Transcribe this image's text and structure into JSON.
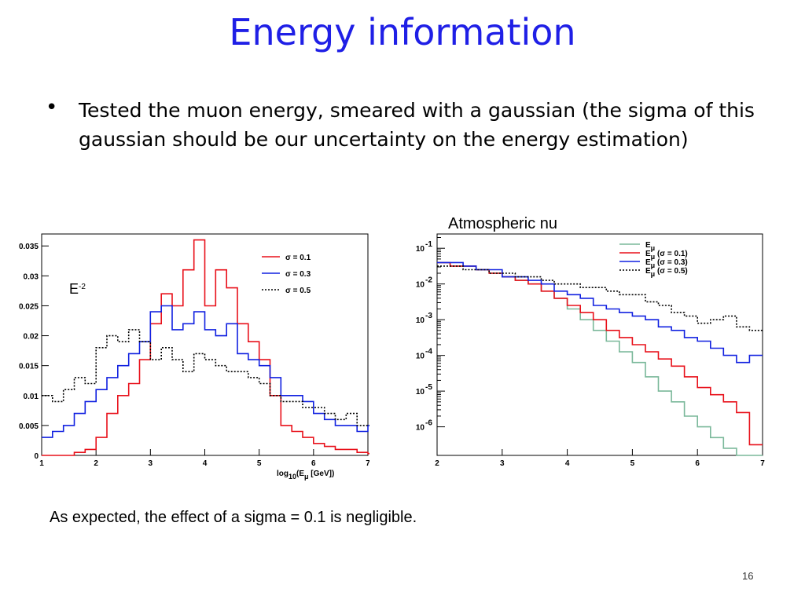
{
  "slide": {
    "title": "Energy information",
    "bullet": "Tested the muon energy, smeared with a gaussian (the sigma of this gaussian should be our uncertainty on the energy estimation)",
    "panel_label": "Atmospheric nu",
    "conclusion": "As expected, the effect of a sigma = 0.1 is negligible.",
    "page_number": "16"
  },
  "chart_data": [
    {
      "type": "line",
      "title": "",
      "annotation": {
        "base": "E",
        "sup": "-2"
      },
      "xlabel": "log10(Eμ [GeV])",
      "xlabel_parts": {
        "prefix": "log",
        "sub": "10",
        "mid": "(E",
        "sub2": "μ",
        "suffix": " [GeV])"
      },
      "ylabel": "",
      "xlim": [
        1,
        7
      ],
      "ylim": [
        0,
        0.037
      ],
      "x_ticks": [
        1,
        2,
        3,
        4,
        5,
        6,
        7
      ],
      "y_ticks": [
        0,
        0.005,
        0.01,
        0.015,
        0.02,
        0.025,
        0.03,
        0.035
      ],
      "y_tick_labels": [
        "0",
        "0.005",
        "0.01",
        "0.015",
        "0.02",
        "0.025",
        "0.03",
        "0.035"
      ],
      "legend_position": "top-right",
      "series": [
        {
          "name": "σ = 0.1",
          "color": "#e8101a",
          "style": "solid",
          "x": [
            1.0,
            1.2,
            1.4,
            1.6,
            1.8,
            2.0,
            2.2,
            2.4,
            2.6,
            2.8,
            3.0,
            3.2,
            3.4,
            3.6,
            3.8,
            4.0,
            4.2,
            4.4,
            4.6,
            4.8,
            5.0,
            5.2,
            5.4,
            5.6,
            5.8,
            6.0,
            6.2,
            6.4,
            6.6,
            6.8,
            7.0
          ],
          "y": [
            0.0,
            0.0,
            0.0,
            0.0005,
            0.001,
            0.003,
            0.007,
            0.01,
            0.012,
            0.016,
            0.022,
            0.027,
            0.025,
            0.031,
            0.036,
            0.025,
            0.031,
            0.028,
            0.022,
            0.019,
            0.016,
            0.01,
            0.005,
            0.004,
            0.003,
            0.002,
            0.0015,
            0.001,
            0.001,
            0.0005,
            0.0003
          ]
        },
        {
          "name": "σ = 0.3",
          "color": "#1020e0",
          "style": "solid",
          "x": [
            1.0,
            1.2,
            1.4,
            1.6,
            1.8,
            2.0,
            2.2,
            2.4,
            2.6,
            2.8,
            3.0,
            3.2,
            3.4,
            3.6,
            3.8,
            4.0,
            4.2,
            4.4,
            4.6,
            4.8,
            5.0,
            5.2,
            5.4,
            5.6,
            5.8,
            6.0,
            6.2,
            6.4,
            6.6,
            6.8,
            7.0
          ],
          "y": [
            0.003,
            0.004,
            0.005,
            0.007,
            0.009,
            0.011,
            0.013,
            0.015,
            0.017,
            0.019,
            0.024,
            0.025,
            0.021,
            0.022,
            0.024,
            0.021,
            0.02,
            0.022,
            0.017,
            0.016,
            0.015,
            0.013,
            0.01,
            0.01,
            0.009,
            0.007,
            0.006,
            0.005,
            0.005,
            0.004,
            0.005
          ]
        },
        {
          "name": "σ = 0.5",
          "color": "#000000",
          "style": "dotted",
          "x": [
            1.0,
            1.2,
            1.4,
            1.6,
            1.8,
            2.0,
            2.2,
            2.4,
            2.6,
            2.8,
            3.0,
            3.2,
            3.4,
            3.6,
            3.8,
            4.0,
            4.2,
            4.4,
            4.6,
            4.8,
            5.0,
            5.2,
            5.4,
            5.6,
            5.8,
            6.0,
            6.2,
            6.4,
            6.6,
            6.8,
            7.0
          ],
          "y": [
            0.01,
            0.009,
            0.011,
            0.013,
            0.012,
            0.018,
            0.02,
            0.019,
            0.021,
            0.019,
            0.016,
            0.018,
            0.016,
            0.014,
            0.017,
            0.016,
            0.015,
            0.014,
            0.014,
            0.013,
            0.012,
            0.01,
            0.009,
            0.009,
            0.008,
            0.008,
            0.007,
            0.006,
            0.007,
            0.005,
            0.005
          ]
        }
      ]
    },
    {
      "type": "line",
      "title": "",
      "xlabel": "",
      "ylabel": "",
      "xlim": [
        2,
        7
      ],
      "ylim_log10": [
        -6.8,
        -0.6
      ],
      "y_scale": "log",
      "x_ticks": [
        2,
        3,
        4,
        5,
        6,
        7
      ],
      "y_ticks_exp": [
        -1,
        -2,
        -3,
        -4,
        -5,
        -6
      ],
      "y_tick_base": "10",
      "legend_position": "top-right",
      "series": [
        {
          "name": "Eμ",
          "legend_parts": {
            "base": "E",
            "sub": "μ",
            "suffix": ""
          },
          "color": "#7ab89a",
          "style": "solid",
          "x": [
            2.0,
            2.2,
            2.4,
            2.6,
            2.8,
            3.0,
            3.2,
            3.4,
            3.6,
            3.8,
            4.0,
            4.2,
            4.4,
            4.6,
            4.8,
            5.0,
            5.2,
            5.4,
            5.6,
            5.8,
            6.0,
            6.2,
            6.4,
            6.6,
            6.8
          ],
          "y_log10": [
            -1.4,
            -1.5,
            -1.5,
            -1.6,
            -1.7,
            -1.8,
            -1.9,
            -2.0,
            -2.2,
            -2.4,
            -2.7,
            -3.0,
            -3.3,
            -3.6,
            -3.9,
            -4.2,
            -4.6,
            -5.0,
            -5.3,
            -5.7,
            -6.0,
            -6.3,
            -6.6,
            -6.8,
            -6.8
          ]
        },
        {
          "name": "Eμ (σ = 0.1)",
          "legend_parts": {
            "base": "E",
            "sub": "μ",
            "suffix": " (σ = 0.1)"
          },
          "color": "#e8101a",
          "style": "solid",
          "x": [
            2.0,
            2.2,
            2.4,
            2.6,
            2.8,
            3.0,
            3.2,
            3.4,
            3.6,
            3.8,
            4.0,
            4.2,
            4.4,
            4.6,
            4.8,
            5.0,
            5.2,
            5.4,
            5.6,
            5.8,
            6.0,
            6.2,
            6.4,
            6.6,
            6.8
          ],
          "y_log10": [
            -1.4,
            -1.5,
            -1.5,
            -1.6,
            -1.7,
            -1.8,
            -1.9,
            -2.0,
            -2.2,
            -2.4,
            -2.6,
            -2.8,
            -3.0,
            -3.3,
            -3.5,
            -3.7,
            -3.9,
            -4.1,
            -4.3,
            -4.6,
            -4.9,
            -5.1,
            -5.3,
            -5.6,
            -6.5
          ]
        },
        {
          "name": "Eμ (σ = 0.3)",
          "legend_parts": {
            "base": "E",
            "sub": "μ",
            "suffix": " (σ = 0.3)"
          },
          "color": "#1020e0",
          "style": "solid",
          "x": [
            2.0,
            2.2,
            2.4,
            2.6,
            2.8,
            3.0,
            3.2,
            3.4,
            3.6,
            3.8,
            4.0,
            4.2,
            4.4,
            4.6,
            4.8,
            5.0,
            5.2,
            5.4,
            5.6,
            5.8,
            6.0,
            6.2,
            6.4,
            6.6,
            6.8
          ],
          "y_log10": [
            -1.4,
            -1.4,
            -1.5,
            -1.6,
            -1.6,
            -1.8,
            -1.8,
            -1.9,
            -2.0,
            -2.2,
            -2.3,
            -2.4,
            -2.6,
            -2.7,
            -2.8,
            -2.9,
            -3.0,
            -3.2,
            -3.3,
            -3.5,
            -3.6,
            -3.8,
            -4.0,
            -4.2,
            -4.0
          ]
        },
        {
          "name": "Eμ (σ = 0.5)",
          "legend_parts": {
            "base": "E",
            "sub": "μ",
            "suffix": " (σ = 0.5)"
          },
          "color": "#000000",
          "style": "dotted",
          "x": [
            2.0,
            2.2,
            2.4,
            2.6,
            2.8,
            3.0,
            3.2,
            3.4,
            3.6,
            3.8,
            4.0,
            4.2,
            4.4,
            4.6,
            4.8,
            5.0,
            5.2,
            5.4,
            5.6,
            5.8,
            6.0,
            6.2,
            6.4,
            6.6,
            6.8
          ],
          "y_log10": [
            -1.5,
            -1.5,
            -1.6,
            -1.6,
            -1.7,
            -1.7,
            -1.8,
            -1.8,
            -1.9,
            -2.0,
            -2.0,
            -2.1,
            -2.1,
            -2.2,
            -2.3,
            -2.3,
            -2.5,
            -2.6,
            -2.8,
            -2.9,
            -3.1,
            -3.0,
            -2.9,
            -3.2,
            -3.3
          ]
        }
      ]
    }
  ]
}
